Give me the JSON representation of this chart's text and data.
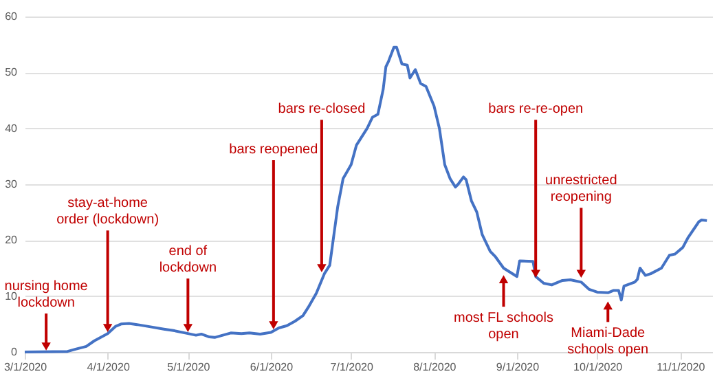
{
  "chart_data": {
    "type": "line",
    "x": [
      "2020-03-01",
      "2020-03-17",
      "2020-03-20",
      "2020-03-24",
      "2020-03-27",
      "2020-04-01",
      "2020-04-04",
      "2020-04-06",
      "2020-04-09",
      "2020-04-12",
      "2020-04-17",
      "2020-04-22",
      "2020-04-26",
      "2020-05-01",
      "2020-05-04",
      "2020-05-06",
      "2020-05-09",
      "2020-05-11",
      "2020-05-14",
      "2020-05-17",
      "2020-05-21",
      "2020-05-24",
      "2020-05-28",
      "2020-06-01",
      "2020-06-04",
      "2020-06-07",
      "2020-06-10",
      "2020-06-13",
      "2020-06-15",
      "2020-06-18",
      "2020-06-21",
      "2020-06-23",
      "2020-06-24",
      "2020-06-26",
      "2020-06-28",
      "2020-07-01",
      "2020-07-03",
      "2020-07-05",
      "2020-07-07",
      "2020-07-09",
      "2020-07-11",
      "2020-07-13",
      "2020-07-14",
      "2020-07-15",
      "2020-07-17",
      "2020-07-18",
      "2020-07-20",
      "2020-07-22",
      "2020-07-23",
      "2020-07-25",
      "2020-07-27",
      "2020-07-29",
      "2020-08-01",
      "2020-08-03",
      "2020-08-05",
      "2020-08-07",
      "2020-08-09",
      "2020-08-10",
      "2020-08-12",
      "2020-08-13",
      "2020-08-15",
      "2020-08-17",
      "2020-08-19",
      "2020-08-22",
      "2020-08-24",
      "2020-08-27",
      "2020-09-01",
      "2020-09-02",
      "2020-09-07",
      "2020-09-08",
      "2020-09-11",
      "2020-09-14",
      "2020-09-18",
      "2020-09-21",
      "2020-09-25",
      "2020-09-28",
      "2020-10-01",
      "2020-10-05",
      "2020-10-07",
      "2020-10-09",
      "2020-10-10",
      "2020-10-11",
      "2020-10-15",
      "2020-10-16",
      "2020-10-17",
      "2020-10-19",
      "2020-10-21",
      "2020-10-25",
      "2020-10-28",
      "2020-10-30",
      "2020-11-02",
      "2020-11-04",
      "2020-11-08",
      "2020-11-09",
      "2020-11-11"
    ],
    "series": [
      {
        "color": "#4472c4",
        "values": [
          0,
          0.1,
          0.5,
          1,
          2,
          3.3,
          4.6,
          5,
          5.1,
          4.9,
          4.5,
          4.1,
          3.8,
          3.3,
          3,
          3.2,
          2.7,
          2.6,
          3,
          3.4,
          3.3,
          3.4,
          3.2,
          3.5,
          4.3,
          4.7,
          5.5,
          6.5,
          8,
          10.5,
          14,
          15.5,
          19,
          26,
          31,
          33.5,
          37,
          38.5,
          40,
          42,
          42.5,
          47,
          51,
          52,
          54.5,
          54.5,
          51.5,
          51.3,
          49,
          50.5,
          48,
          47.5,
          44,
          40,
          33.5,
          31,
          29.5,
          30,
          31.3,
          30.8,
          27,
          25,
          21,
          18,
          17,
          15,
          13.5,
          16.3,
          16.2,
          13.5,
          12.3,
          12,
          12.8,
          12.9,
          12.5,
          11.2,
          10.7,
          10.6,
          11,
          11,
          9.3,
          11.8,
          12.5,
          13,
          15,
          13.7,
          14,
          15,
          17.3,
          17.5,
          18.7,
          20.5,
          23.3,
          23.6,
          23.5
        ]
      }
    ],
    "xlim": [
      "2020-03-01",
      "2020-11-13"
    ],
    "xticks": [
      {
        "value": "2020-03-01",
        "label": "3/1/2020"
      },
      {
        "value": "2020-04-01",
        "label": "4/1/2020"
      },
      {
        "value": "2020-05-01",
        "label": "5/1/2020"
      },
      {
        "value": "2020-06-01",
        "label": "6/1/2020"
      },
      {
        "value": "2020-07-01",
        "label": "7/1/2020"
      },
      {
        "value": "2020-08-01",
        "label": "8/1/2020"
      },
      {
        "value": "2020-09-01",
        "label": "9/1/2020"
      },
      {
        "value": "2020-10-01",
        "label": "10/1/2020"
      },
      {
        "value": "2020-11-01",
        "label": "11/1/2020"
      }
    ],
    "ylim": [
      0,
      60
    ],
    "yticks": [
      0,
      10,
      20,
      30,
      40,
      50,
      60
    ],
    "grid": "y",
    "line_style": "solid",
    "marker": "none",
    "annotations": [
      {
        "text": "nursing home lockdown",
        "x": "2020-03-09",
        "y": 0
      },
      {
        "text": "stay-at-home order (lockdown)",
        "x": "2020-04-01",
        "y": 3.3
      },
      {
        "text": "end of lockdown",
        "x": "2020-05-01",
        "y": 3.3
      },
      {
        "text": "bars reopened",
        "x": "2020-06-02",
        "y": 3.8
      },
      {
        "text": "bars re-closed",
        "x": "2020-06-20",
        "y": 14
      },
      {
        "text": "most FL schools open",
        "x": "2020-08-27",
        "y": 14
      },
      {
        "text": "bars re-re-open",
        "x": "2020-09-08",
        "y": 13
      },
      {
        "text": "unrestricted reopening",
        "x": "2020-09-25",
        "y": 13
      },
      {
        "text": "Miami-Dade schools open",
        "x": "2020-10-05",
        "y": 9.3
      }
    ]
  }
}
